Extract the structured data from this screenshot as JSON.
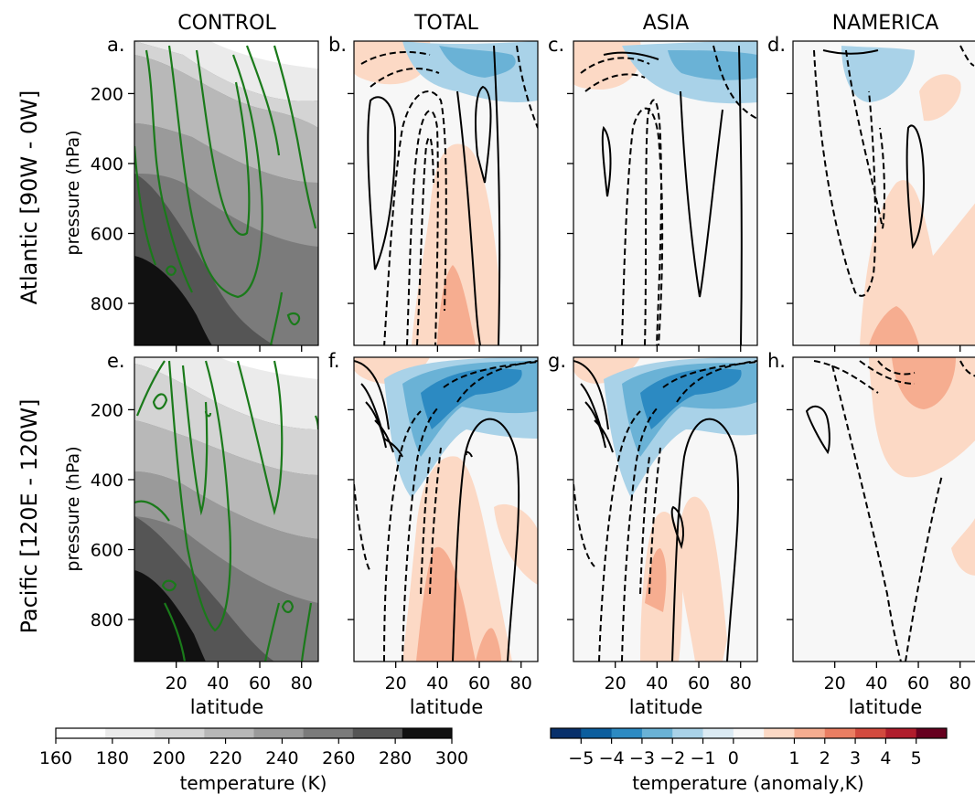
{
  "columns": [
    "CONTROL",
    "TOTAL",
    "ASIA",
    "NAMERICA"
  ],
  "rows": [
    "Atlantic [90W - 0W]",
    "Pacific [120E - 120W]"
  ],
  "panel_letters": [
    "a.",
    "b.",
    "c.",
    "d.",
    "e.",
    "f.",
    "g.",
    "h."
  ],
  "ylabel": "pressure (hPa)",
  "xlabel": "latitude",
  "colorbar_left": {
    "label": "temperature (K)",
    "ticks": [
      "160",
      "180",
      "200",
      "220",
      "240",
      "260",
      "280",
      "300"
    ],
    "colors": [
      "#ffffff",
      "#ebebeb",
      "#d4d4d4",
      "#b8b8b8",
      "#9a9a9a",
      "#7b7b7b",
      "#555555",
      "#111111"
    ]
  },
  "colorbar_right": {
    "label": "temperature (anomaly,K)",
    "ticks": [
      "−5",
      "−4",
      "−3",
      "−2",
      "−1",
      "0",
      "1",
      "2",
      "3",
      "4",
      "5"
    ],
    "colors": [
      "#08306b",
      "#0b5e9e",
      "#2c8ac2",
      "#6ab2d6",
      "#a9d2e8",
      "#dbeaf3",
      "#f7f7f7",
      "#fcd9c5",
      "#f6ad90",
      "#ea7e62",
      "#d24a3e",
      "#b01d2c",
      "#67001f"
    ]
  },
  "chart_data": [
    {
      "panel": "a",
      "type": "heatmap",
      "title": "CONTROL",
      "ylabel": "pressure (hPa)",
      "xlabel": "",
      "xlim": [
        0,
        88
      ],
      "ylim": [
        920,
        50
      ],
      "xticks": [
        20,
        40,
        60,
        80
      ],
      "yticks": [
        200,
        400,
        600,
        800
      ],
      "field": "temperature (K)",
      "overlay": "green contours"
    },
    {
      "panel": "b",
      "type": "heatmap",
      "title": "TOTAL",
      "xlim": [
        0,
        88
      ],
      "ylim": [
        920,
        50
      ],
      "field": "temperature (anomaly,K)"
    },
    {
      "panel": "c",
      "type": "heatmap",
      "title": "ASIA",
      "xlim": [
        0,
        88
      ],
      "ylim": [
        920,
        50
      ],
      "field": "temperature (anomaly,K)"
    },
    {
      "panel": "d",
      "type": "heatmap",
      "title": "NAMERICA",
      "xlim": [
        0,
        88
      ],
      "ylim": [
        920,
        50
      ],
      "field": "temperature (anomaly,K)"
    },
    {
      "panel": "e",
      "type": "heatmap",
      "ylabel": "pressure (hPa)",
      "xlabel": "latitude",
      "xlim": [
        0,
        88
      ],
      "ylim": [
        920,
        50
      ],
      "field": "temperature (K)",
      "overlay": "green contours"
    },
    {
      "panel": "f",
      "type": "heatmap",
      "xlabel": "latitude",
      "xlim": [
        0,
        88
      ],
      "ylim": [
        920,
        50
      ],
      "field": "temperature (anomaly,K)"
    },
    {
      "panel": "g",
      "type": "heatmap",
      "xlabel": "latitude",
      "xlim": [
        0,
        88
      ],
      "ylim": [
        920,
        50
      ],
      "field": "temperature (anomaly,K)"
    },
    {
      "panel": "h",
      "type": "heatmap",
      "xlabel": "latitude",
      "xlim": [
        0,
        88
      ],
      "ylim": [
        920,
        50
      ],
      "field": "temperature (anomaly,K)"
    }
  ]
}
